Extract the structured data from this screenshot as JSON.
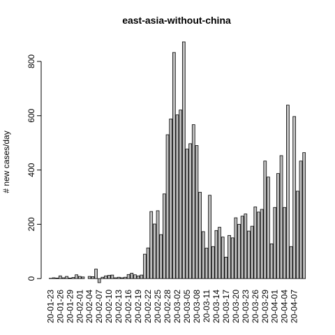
{
  "chart_data": {
    "type": "bar",
    "title": "east-asia-without-china",
    "ylabel": "# new cases/day",
    "categories": [
      "20-01-23",
      null,
      null,
      "20-01-26",
      null,
      null,
      "20-01-29",
      null,
      null,
      "20-02-01",
      null,
      null,
      "20-02-04",
      null,
      null,
      "20-02-07",
      null,
      null,
      "20-02-10",
      null,
      null,
      "20-02-13",
      null,
      null,
      "20-02-16",
      null,
      null,
      "20-02-19",
      null,
      null,
      "20-02-22",
      null,
      null,
      "20-02-25",
      null,
      null,
      "20-02-28",
      null,
      null,
      "20-03-02",
      null,
      null,
      "20-03-05",
      null,
      null,
      "20-03-08",
      null,
      null,
      "20-03-11",
      null,
      null,
      "20-03-14",
      null,
      null,
      "20-03-17",
      null,
      null,
      "20-03-20",
      null,
      null,
      "20-03-23",
      null,
      null,
      "20-03-26",
      null,
      null,
      "20-03-29",
      null,
      null,
      "20-04-01",
      null,
      null,
      "20-04-04",
      null,
      null,
      "20-04-07",
      null,
      null,
      null
    ],
    "values": [
      1,
      3,
      2,
      10,
      3,
      8,
      2,
      4,
      14,
      8,
      6,
      0,
      8,
      7,
      35,
      -15,
      5,
      10,
      12,
      13,
      3,
      5,
      3,
      5,
      15,
      20,
      14,
      10,
      13,
      90,
      113,
      247,
      201,
      250,
      162,
      312,
      530,
      588,
      833,
      603,
      621,
      872,
      477,
      497,
      567,
      490,
      318,
      173,
      112,
      307,
      118,
      177,
      189,
      153,
      79,
      159,
      150,
      224,
      200,
      230,
      238,
      175,
      193,
      264,
      245,
      255,
      433,
      374,
      128,
      262,
      387,
      453,
      262,
      639,
      118,
      597,
      322,
      433,
      464
    ],
    "color": "#bebebe",
    "ylim": [
      -15,
      890
    ],
    "yticks": [
      0,
      200,
      400,
      600,
      800
    ]
  }
}
